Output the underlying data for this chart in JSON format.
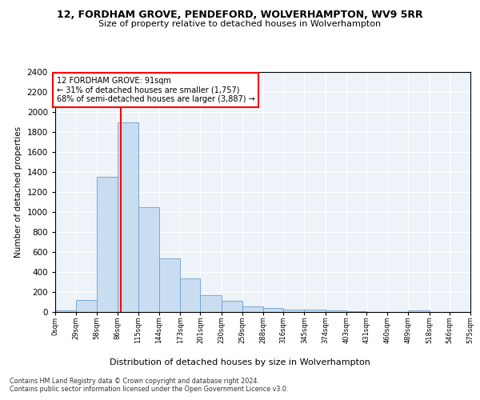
{
  "title": "12, FORDHAM GROVE, PENDEFORD, WOLVERHAMPTON, WV9 5RR",
  "subtitle": "Size of property relative to detached houses in Wolverhampton",
  "xlabel": "Distribution of detached houses by size in Wolverhampton",
  "ylabel": "Number of detached properties",
  "bar_color": "#c9ddf0",
  "bar_edge_color": "#6a9fd0",
  "background_color": "#eef2f9",
  "grid_color": "#ffffff",
  "annotation_text": "12 FORDHAM GROVE: 91sqm\n← 31% of detached houses are smaller (1,757)\n68% of semi-detached houses are larger (3,887) →",
  "bin_edges": [
    0,
    29,
    58,
    86,
    115,
    144,
    173,
    201,
    230,
    259,
    288,
    316,
    345,
    374,
    403,
    431,
    460,
    489,
    518,
    546,
    575
  ],
  "bin_labels": [
    "0sqm",
    "29sqm",
    "58sqm",
    "86sqm",
    "115sqm",
    "144sqm",
    "173sqm",
    "201sqm",
    "230sqm",
    "259sqm",
    "288sqm",
    "316sqm",
    "345sqm",
    "374sqm",
    "403sqm",
    "431sqm",
    "460sqm",
    "489sqm",
    "518sqm",
    "546sqm",
    "575sqm"
  ],
  "bar_heights": [
    20,
    120,
    1350,
    1900,
    1050,
    540,
    335,
    165,
    110,
    60,
    38,
    28,
    28,
    15,
    5,
    0,
    0,
    15,
    0,
    0,
    20
  ],
  "ylim": [
    0,
    2400
  ],
  "yticks": [
    0,
    200,
    400,
    600,
    800,
    1000,
    1200,
    1400,
    1600,
    1800,
    2000,
    2200,
    2400
  ],
  "footnote1": "Contains HM Land Registry data © Crown copyright and database right 2024.",
  "footnote2": "Contains public sector information licensed under the Open Government Licence v3.0.",
  "red_line_x": 91
}
